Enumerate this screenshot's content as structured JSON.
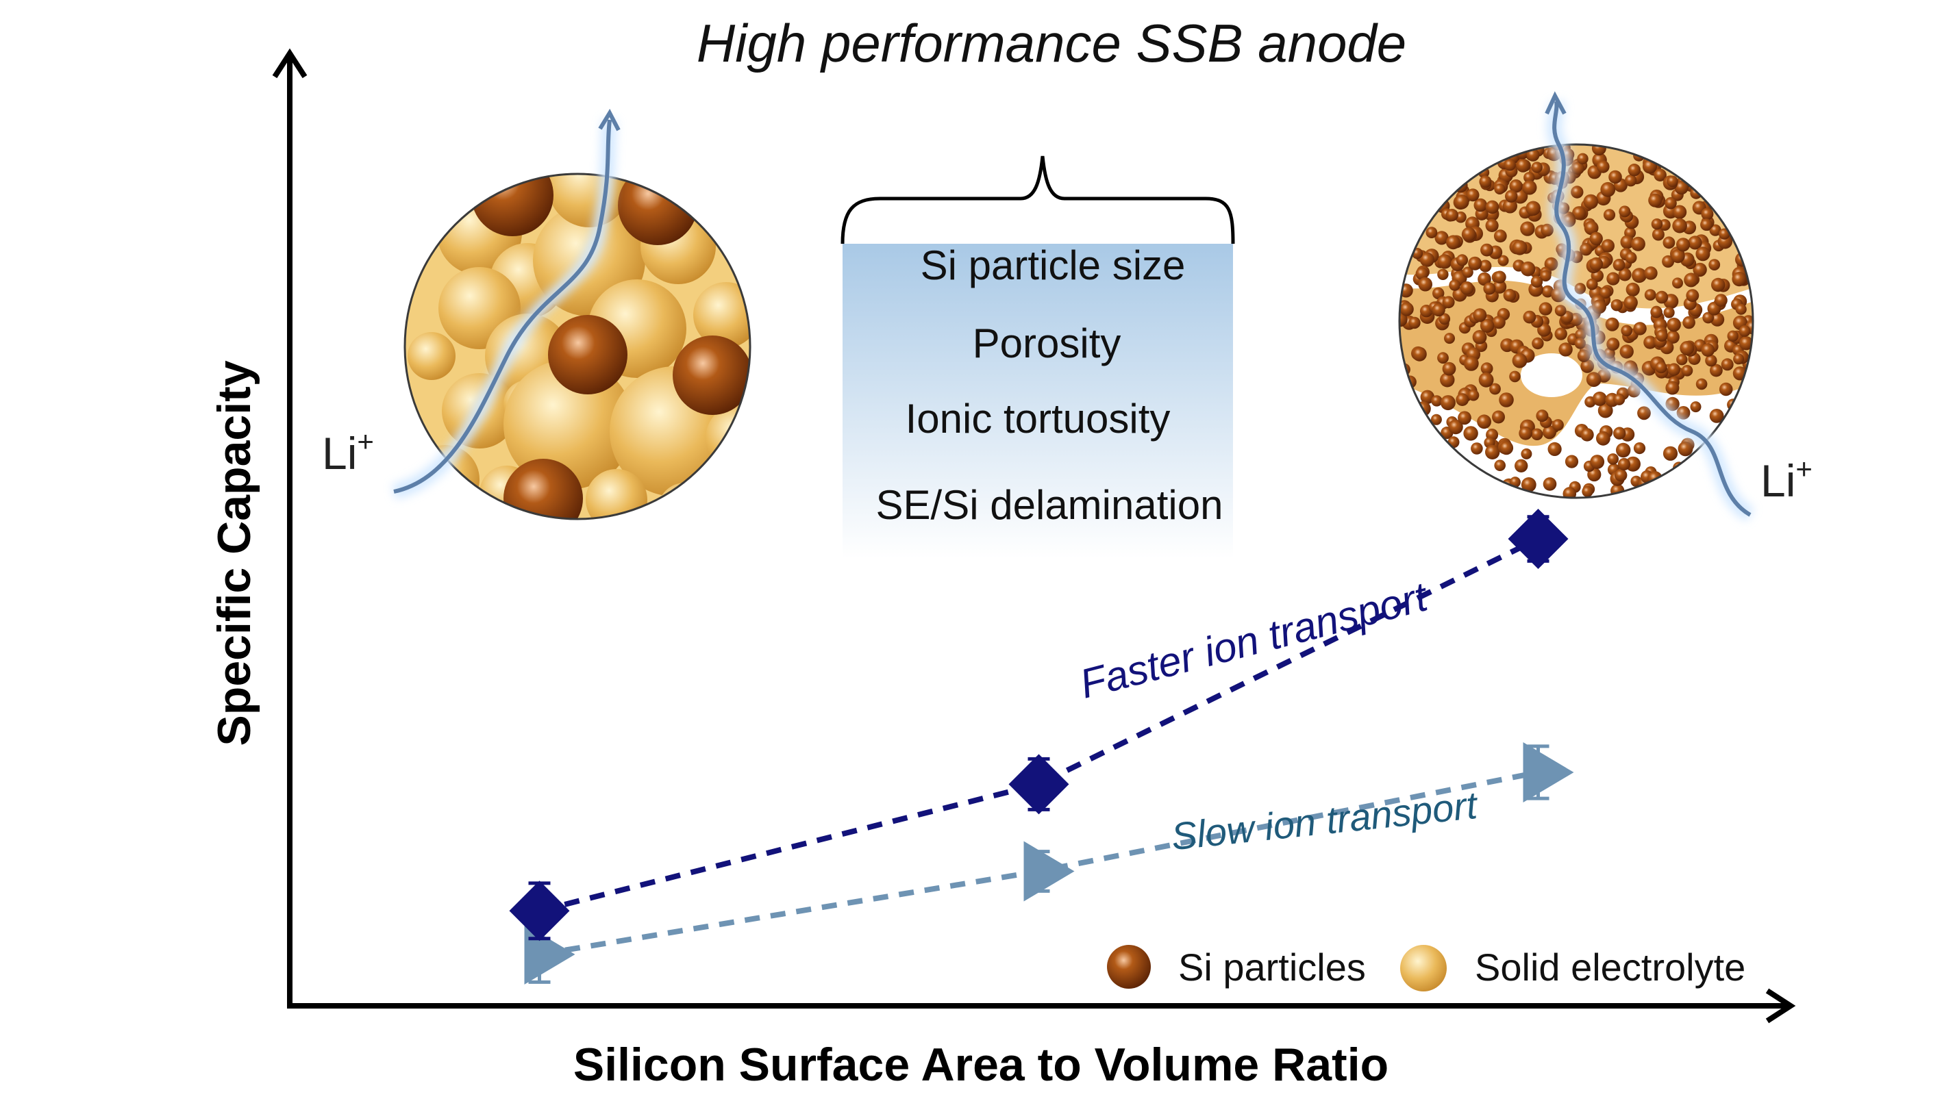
{
  "title": "High performance SSB anode",
  "axes": {
    "xlabel": "Silicon Surface Area to Volume Ratio",
    "ylabel": "Specific Capacity"
  },
  "factors": [
    "Si particle size",
    "Porosity",
    "Ionic tortuosity",
    "SE/Si delamination"
  ],
  "ion_labels": {
    "left": "Li",
    "right": "Li",
    "superscript": "+"
  },
  "trend_labels": {
    "fast": "Faster ion transport",
    "slow": "Slow ion transport"
  },
  "legend": {
    "si": "Si particles",
    "se": "Solid electrolyte"
  },
  "colors": {
    "fast": "#12127a",
    "slow": "#6e93b3",
    "slow_text": "#1f5a7a",
    "si": "#8a3a08",
    "se": "#e6b450",
    "ion_path": "#5d7fa8"
  },
  "chart_data": {
    "type": "scatter",
    "x": [
      1,
      2,
      3
    ],
    "series": [
      {
        "name": "Faster ion transport",
        "marker": "diamond",
        "values": [
          1.2,
          2.8,
          5.9
        ]
      },
      {
        "name": "Slow ion transport",
        "marker": "triangle-right",
        "values": [
          0.65,
          1.7,
          2.95
        ]
      }
    ],
    "xlim": [
      0.5,
      3.5
    ],
    "ylim": [
      0,
      12
    ]
  }
}
